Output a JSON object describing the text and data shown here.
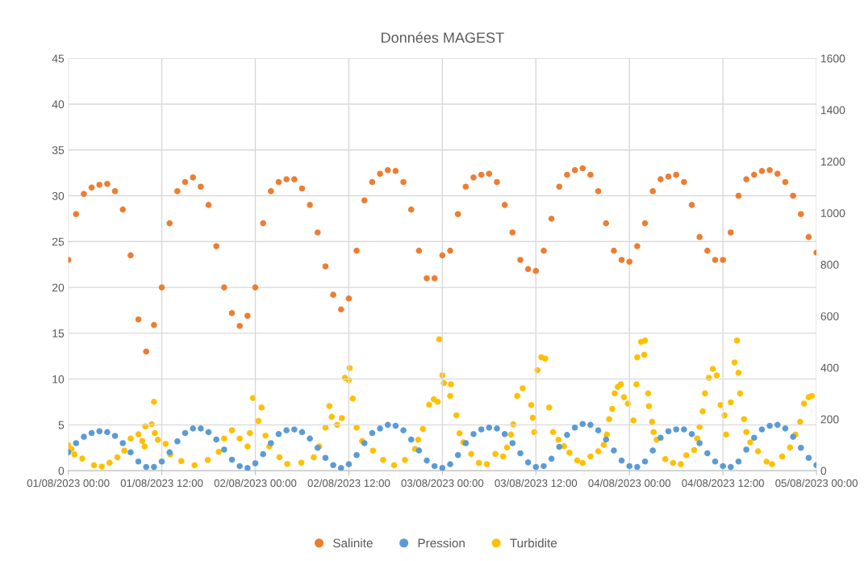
{
  "chart_data": {
    "type": "scatter",
    "title": "Données MAGEST",
    "x": [
      "2023-08-01T00:00",
      "2023-08-01T01:00",
      "2023-08-01T02:00",
      "2023-08-01T03:00",
      "2023-08-01T04:00",
      "2023-08-01T05:00",
      "2023-08-01T06:00",
      "2023-08-01T07:00",
      "2023-08-01T08:00",
      "2023-08-01T09:00",
      "2023-08-01T10:00",
      "2023-08-01T11:00",
      "2023-08-01T12:00",
      "2023-08-01T13:00",
      "2023-08-01T14:00",
      "2023-08-01T15:00",
      "2023-08-01T16:00",
      "2023-08-01T17:00",
      "2023-08-01T18:00",
      "2023-08-01T19:00",
      "2023-08-01T20:00",
      "2023-08-01T21:00",
      "2023-08-01T22:00",
      "2023-08-01T23:00",
      "2023-08-02T00:00",
      "2023-08-02T01:00",
      "2023-08-02T02:00",
      "2023-08-02T03:00",
      "2023-08-02T04:00",
      "2023-08-02T05:00",
      "2023-08-02T06:00",
      "2023-08-02T07:00",
      "2023-08-02T08:00",
      "2023-08-02T09:00",
      "2023-08-02T10:00",
      "2023-08-02T11:00",
      "2023-08-02T12:00",
      "2023-08-02T13:00",
      "2023-08-02T14:00",
      "2023-08-02T15:00",
      "2023-08-02T16:00",
      "2023-08-02T17:00",
      "2023-08-02T18:00",
      "2023-08-02T19:00",
      "2023-08-02T20:00",
      "2023-08-02T21:00",
      "2023-08-02T22:00",
      "2023-08-02T23:00",
      "2023-08-03T00:00",
      "2023-08-03T01:00",
      "2023-08-03T02:00",
      "2023-08-03T03:00",
      "2023-08-03T04:00",
      "2023-08-03T05:00",
      "2023-08-03T06:00",
      "2023-08-03T07:00",
      "2023-08-03T08:00",
      "2023-08-03T09:00",
      "2023-08-03T10:00",
      "2023-08-03T11:00",
      "2023-08-03T12:00",
      "2023-08-03T13:00",
      "2023-08-03T14:00",
      "2023-08-03T15:00",
      "2023-08-03T16:00",
      "2023-08-03T17:00",
      "2023-08-03T18:00",
      "2023-08-03T19:00",
      "2023-08-03T20:00",
      "2023-08-03T21:00",
      "2023-08-03T22:00",
      "2023-08-03T23:00",
      "2023-08-04T00:00",
      "2023-08-04T01:00",
      "2023-08-04T02:00",
      "2023-08-04T03:00",
      "2023-08-04T04:00",
      "2023-08-04T05:00",
      "2023-08-04T06:00",
      "2023-08-04T07:00",
      "2023-08-04T08:00",
      "2023-08-04T09:00",
      "2023-08-04T10:00",
      "2023-08-04T11:00",
      "2023-08-04T12:00",
      "2023-08-04T13:00",
      "2023-08-04T14:00",
      "2023-08-04T15:00",
      "2023-08-04T16:00",
      "2023-08-04T17:00",
      "2023-08-04T18:00",
      "2023-08-04T19:00",
      "2023-08-04T20:00",
      "2023-08-04T21:00",
      "2023-08-04T22:00",
      "2023-08-04T23:00",
      "2023-08-05T00:00"
    ],
    "series": [
      {
        "name": "Salinite",
        "color": "#ed7d31",
        "values": [
          23,
          28,
          30.2,
          30.9,
          31.2,
          31.3,
          30.5,
          28.5,
          23.5,
          16.5,
          13,
          15.9,
          20,
          27,
          30.5,
          31.5,
          32,
          31,
          29,
          24.5,
          20,
          17.2,
          15.8,
          16.9,
          20,
          27,
          30.5,
          31.5,
          31.8,
          31.8,
          30.8,
          29,
          26,
          22.3,
          19.2,
          17.6,
          18.8,
          24,
          29.5,
          31.5,
          32.4,
          32.8,
          32.7,
          31.5,
          28.5,
          24,
          21,
          21,
          23.5,
          24,
          28,
          31,
          32,
          32.3,
          32.4,
          31.5,
          29,
          26,
          23,
          22,
          21.8,
          24,
          27.5,
          31,
          32.3,
          32.8,
          33,
          32.3,
          30.5,
          27,
          24,
          23,
          22.8,
          24.5,
          27,
          30.5,
          31.8,
          32.1,
          32.3,
          31.5,
          29,
          25.5,
          24,
          23,
          23,
          26,
          30,
          31.8,
          32.3,
          32.7,
          32.8,
          32.4,
          31.5,
          30,
          28,
          25.5,
          23.8
        ]
      },
      {
        "name": "Pression",
        "color": "#5b9bd5",
        "values": [
          2.0,
          3.0,
          3.7,
          4.1,
          4.3,
          4.2,
          3.8,
          3.0,
          2.0,
          1.0,
          0.4,
          0.4,
          1.0,
          2.0,
          3.2,
          4.1,
          4.6,
          4.6,
          4.2,
          3.4,
          2.3,
          1.2,
          0.5,
          0.3,
          0.8,
          1.8,
          3.0,
          4.0,
          4.4,
          4.5,
          4.2,
          3.5,
          2.5,
          1.4,
          0.6,
          0.3,
          0.7,
          1.7,
          3.0,
          4.1,
          4.6,
          5.0,
          4.9,
          4.4,
          3.4,
          2.2,
          1.1,
          0.5,
          0.3,
          0.7,
          1.7,
          3.0,
          4.0,
          4.5,
          4.7,
          4.6,
          4.0,
          3.0,
          1.9,
          0.9,
          0.4,
          0.5,
          1.3,
          2.6,
          3.9,
          4.7,
          5.1,
          5.0,
          4.4,
          3.4,
          2.2,
          1.1,
          0.5,
          0.4,
          1.0,
          2.2,
          3.6,
          4.3,
          4.5,
          4.5,
          4.0,
          3.0,
          1.9,
          1.0,
          0.5,
          0.4,
          1.0,
          2.3,
          3.6,
          4.5,
          4.9,
          5.0,
          4.6,
          3.7,
          2.5,
          1.4,
          0.6
        ]
      },
      {
        "name": "Turbidite",
        "color": "#ffc000",
        "axis": "y2",
        "x": [
          "2023-08-01T00:00",
          "2023-08-01T00:24",
          "2023-08-01T00:48",
          "2023-08-01T01:48",
          "2023-08-01T03:18",
          "2023-08-01T04:18",
          "2023-08-01T05:18",
          "2023-08-01T06:18",
          "2023-08-01T07:12",
          "2023-08-01T08:00",
          "2023-08-01T09:00",
          "2023-08-01T09:30",
          "2023-08-01T09:48",
          "2023-08-01T09:54",
          "2023-08-01T10:42",
          "2023-08-01T11:00",
          "2023-08-01T11:06",
          "2023-08-01T11:30",
          "2023-08-01T12:30",
          "2023-08-01T13:06",
          "2023-08-01T14:30",
          "2023-08-01T16:12",
          "2023-08-01T17:54",
          "2023-08-01T19:18",
          "2023-08-01T20:00",
          "2023-08-01T21:00",
          "2023-08-01T22:00",
          "2023-08-01T23:00",
          "2023-08-01T23:18",
          "2023-08-01T23:42",
          "2023-08-02T00:24",
          "2023-08-02T00:48",
          "2023-08-02T01:18",
          "2023-08-02T01:48",
          "2023-08-02T03:06",
          "2023-08-02T04:06",
          "2023-08-02T05:54",
          "2023-08-02T07:30",
          "2023-08-02T08:12",
          "2023-08-02T09:00",
          "2023-08-02T09:30",
          "2023-08-02T09:48",
          "2023-08-02T10:30",
          "2023-08-02T11:06",
          "2023-08-02T11:30",
          "2023-08-02T12:00",
          "2023-08-02T12:06",
          "2023-08-02T12:30",
          "2023-08-02T13:00",
          "2023-08-02T13:42",
          "2023-08-02T15:06",
          "2023-08-02T16:24",
          "2023-08-02T17:48",
          "2023-08-02T19:12",
          "2023-08-02T20:30",
          "2023-08-02T20:54",
          "2023-08-02T21:30",
          "2023-08-02T22:18",
          "2023-08-02T22:54",
          "2023-08-02T23:24",
          "2023-08-02T23:36",
          "2023-08-03T00:00",
          "2023-08-03T00:12",
          "2023-08-03T01:00",
          "2023-08-03T01:06",
          "2023-08-03T01:48",
          "2023-08-03T02:12",
          "2023-08-03T02:42",
          "2023-08-03T03:42",
          "2023-08-03T04:42",
          "2023-08-03T05:42",
          "2023-08-03T06:48",
          "2023-08-03T07:48",
          "2023-08-03T08:18",
          "2023-08-03T08:48",
          "2023-08-03T09:06",
          "2023-08-03T09:36",
          "2023-08-03T10:18",
          "2023-08-03T11:24",
          "2023-08-03T11:36",
          "2023-08-03T11:48",
          "2023-08-03T12:12",
          "2023-08-03T12:42",
          "2023-08-03T13:12",
          "2023-08-03T13:42",
          "2023-08-03T14:12",
          "2023-08-03T14:54",
          "2023-08-03T15:36",
          "2023-08-03T16:18",
          "2023-08-03T17:18",
          "2023-08-03T18:00",
          "2023-08-03T19:00",
          "2023-08-03T20:00",
          "2023-08-03T20:42",
          "2023-08-03T21:06",
          "2023-08-03T21:24",
          "2023-08-03T21:48",
          "2023-08-03T22:06",
          "2023-08-03T22:30",
          "2023-08-03T22:54",
          "2023-08-03T23:18",
          "2023-08-03T23:48",
          "2023-08-04T00:30",
          "2023-08-04T00:54",
          "2023-08-04T01:00",
          "2023-08-04T01:30",
          "2023-08-04T01:54",
          "2023-08-04T02:00",
          "2023-08-04T02:24",
          "2023-08-04T02:30",
          "2023-08-04T02:54",
          "2023-08-04T03:06",
          "2023-08-04T03:30",
          "2023-08-04T04:36",
          "2023-08-04T05:36",
          "2023-08-04T06:36",
          "2023-08-04T07:18",
          "2023-08-04T08:18",
          "2023-08-04T08:42",
          "2023-08-04T09:00",
          "2023-08-04T09:24",
          "2023-08-04T09:42",
          "2023-08-04T10:12",
          "2023-08-04T10:42",
          "2023-08-04T11:12",
          "2023-08-04T11:42",
          "2023-08-04T12:12",
          "2023-08-04T12:24",
          "2023-08-04T13:00",
          "2023-08-04T13:30",
          "2023-08-04T13:48",
          "2023-08-04T14:00",
          "2023-08-04T14:12",
          "2023-08-04T14:42",
          "2023-08-04T15:00",
          "2023-08-04T15:30",
          "2023-08-04T16:30",
          "2023-08-04T17:36",
          "2023-08-04T18:18",
          "2023-08-04T19:36",
          "2023-08-04T20:36",
          "2023-08-04T21:18",
          "2023-08-04T21:54",
          "2023-08-04T22:24",
          "2023-08-04T23:00",
          "2023-08-04T23:24"
        ],
        "values": [
          99,
          84,
          63,
          47,
          21,
          16,
          31,
          52,
          78,
          125,
          141,
          115,
          94,
          172,
          180,
          267,
          146,
          120,
          104,
          63,
          37,
          21,
          42,
          73,
          125,
          157,
          125,
          94,
          146,
          282,
          193,
          245,
          136,
          94,
          52,
          26,
          31,
          52,
          94,
          167,
          251,
          209,
          178,
          204,
          360,
          351,
          398,
          280,
          167,
          115,
          78,
          42,
          21,
          42,
          84,
          120,
          162,
          256,
          277,
          267,
          510,
          370,
          340,
          290,
          335,
          215,
          145,
          110,
          65,
          30,
          25,
          65,
          55,
          90,
          140,
          180,
          290,
          320,
          255,
          205,
          150,
          390,
          440,
          435,
          245,
          150,
          120,
          95,
          70,
          40,
          30,
          55,
          75,
          100,
          140,
          200,
          240,
          300,
          325,
          335,
          285,
          260,
          195,
          335,
          440,
          500,
          450,
          505,
          300,
          250,
          190,
          150,
          120,
          45,
          30,
          25,
          60,
          80,
          125,
          170,
          230,
          300,
          360,
          395,
          370,
          255,
          215,
          140,
          265,
          420,
          505,
          380,
          300,
          200,
          150,
          110,
          75,
          35,
          25,
          55,
          90,
          140,
          190,
          260,
          285,
          290
        ]
      }
    ],
    "xlim": [
      "2023-08-01T00:00",
      "2023-08-05T00:00"
    ],
    "xticks": [
      {
        "value": "2023-08-01T00:00",
        "label": "01/08/2023 00:00"
      },
      {
        "value": "2023-08-01T12:00",
        "label": "01/08/2023 12:00"
      },
      {
        "value": "2023-08-02T00:00",
        "label": "02/08/2023 00:00"
      },
      {
        "value": "2023-08-02T12:00",
        "label": "02/08/2023 12:00"
      },
      {
        "value": "2023-08-03T00:00",
        "label": "03/08/2023 00:00"
      },
      {
        "value": "2023-08-03T12:00",
        "label": "03/08/2023 12:00"
      },
      {
        "value": "2023-08-04T00:00",
        "label": "04/08/2023 00:00"
      },
      {
        "value": "2023-08-04T12:00",
        "label": "04/08/2023 12:00"
      },
      {
        "value": "2023-08-05T00:00",
        "label": "05/08/2023 00:00"
      }
    ],
    "ylim": [
      0,
      45
    ],
    "yticks": [
      0,
      5,
      10,
      15,
      20,
      25,
      30,
      35,
      40,
      45
    ],
    "y2lim": [
      0,
      1600
    ],
    "y2ticks": [
      0,
      200,
      400,
      600,
      800,
      1000,
      1200,
      1400,
      1600
    ],
    "grid": true,
    "legend": "bottom",
    "marker": "circle"
  }
}
